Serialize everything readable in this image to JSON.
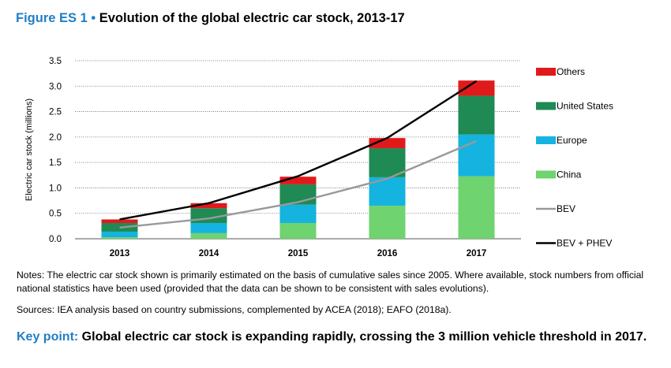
{
  "figure": {
    "label": "Figure ES 1",
    "bullet": "•",
    "title": "Evolution of the global electric car stock, 2013-17"
  },
  "chart_data": {
    "type": "bar",
    "stacked": true,
    "categories": [
      "2013",
      "2014",
      "2015",
      "2016",
      "2017"
    ],
    "ylabel": "Electric car stock (millions)",
    "xlabel": "",
    "ylim": [
      0,
      3.5
    ],
    "yticks": [
      "0.0",
      "0.5",
      "1.0",
      "1.5",
      "2.0",
      "2.5",
      "3.0",
      "3.5"
    ],
    "grid": "horizontal dotted",
    "legend_position": "right",
    "series": [
      {
        "name": "China",
        "color": "#6fd36f",
        "values": [
          0.03,
          0.11,
          0.31,
          0.65,
          1.23
        ]
      },
      {
        "name": "Europe",
        "color": "#15b3df",
        "values": [
          0.11,
          0.2,
          0.36,
          0.56,
          0.82
        ]
      },
      {
        "name": "United States",
        "color": "#1f8a53",
        "values": [
          0.17,
          0.29,
          0.4,
          0.57,
          0.76
        ]
      },
      {
        "name": "Others",
        "color": "#e01a1a",
        "values": [
          0.07,
          0.1,
          0.15,
          0.2,
          0.3
        ]
      }
    ],
    "lines": [
      {
        "name": "BEV",
        "color": "#999999",
        "values": [
          0.22,
          0.4,
          0.72,
          1.18,
          1.92
        ]
      },
      {
        "name": "BEV + PHEV",
        "color": "#000000",
        "values": [
          0.38,
          0.7,
          1.23,
          1.98,
          3.1
        ]
      }
    ],
    "legend_order": [
      "Others",
      "United States",
      "Europe",
      "China",
      "BEV",
      "BEV + PHEV"
    ]
  },
  "notes": "Notes: The electric car stock shown is primarily estimated on the basis of cumulative sales since 2005. Where available, stock numbers from official national statistics have been used (provided that the data can be shown to be consistent with sales evolutions).",
  "sources": "Sources: IEA analysis based on country submissions, complemented by ACEA (2018); EAFO (2018a).",
  "key_point": {
    "label": "Key point:",
    "text": "Global electric car stock is expanding rapidly, crossing the 3 million vehicle threshold in 2017."
  }
}
